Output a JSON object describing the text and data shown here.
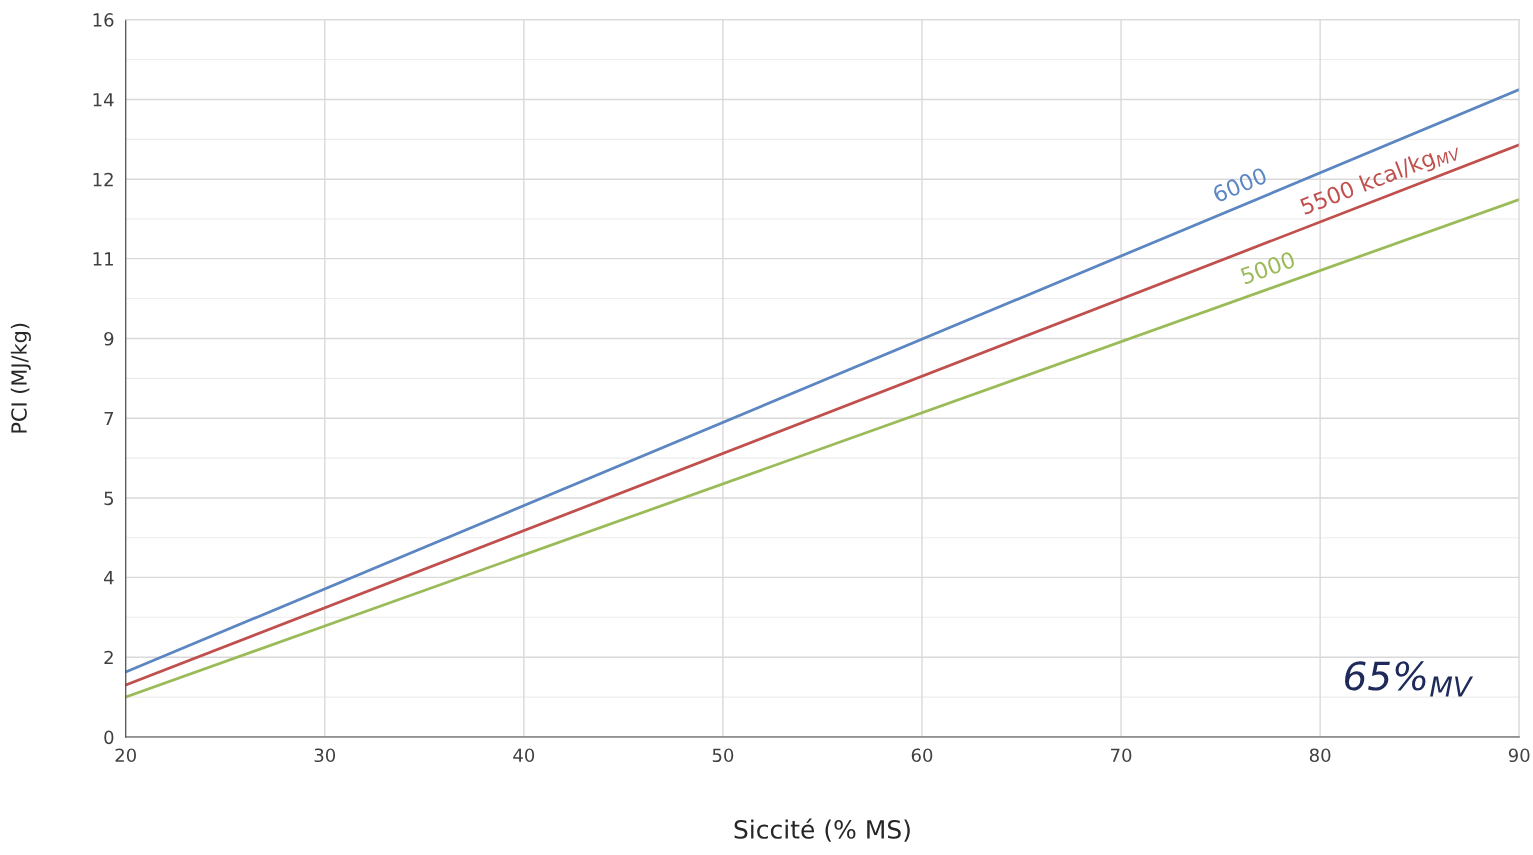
{
  "chart_data": {
    "type": "line",
    "xlabel": "Siccité (% MS)",
    "ylabel": "PCI (MJ/kg)",
    "x": [
      20,
      90
    ],
    "series": [
      {
        "name": "6000",
        "color": "#5b86c2",
        "values": [
          1.45,
          14.44
        ]
      },
      {
        "name": "5500 kcal/kg$_{MV}$",
        "color": "#c0504d",
        "values": [
          1.16,
          13.21
        ]
      },
      {
        "name": "5000",
        "color": "#9bbb59",
        "values": [
          0.89,
          11.99
        ]
      }
    ],
    "xlim": [
      20,
      90
    ],
    "xticks": [
      20,
      30,
      40,
      50,
      60,
      70,
      80,
      90
    ],
    "ylim": [
      0,
      16
    ],
    "yticks": [
      0,
      {
        "value": 1.78,
        "label": "2"
      },
      {
        "value": 3.56,
        "label": "4"
      },
      {
        "value": 5.33,
        "label": "5"
      },
      {
        "value": 7.11,
        "label": "7"
      },
      {
        "value": 8.89,
        "label": "9"
      },
      {
        "value": 10.67,
        "label": "11"
      },
      {
        "value": 12.44,
        "label": "12"
      },
      {
        "value": 14.22,
        "label": "14"
      },
      16
    ],
    "annotations": [
      "65%$_{MV}$"
    ],
    "grid": true,
    "legend": false,
    "marker": "none",
    "line_style": "solid"
  }
}
